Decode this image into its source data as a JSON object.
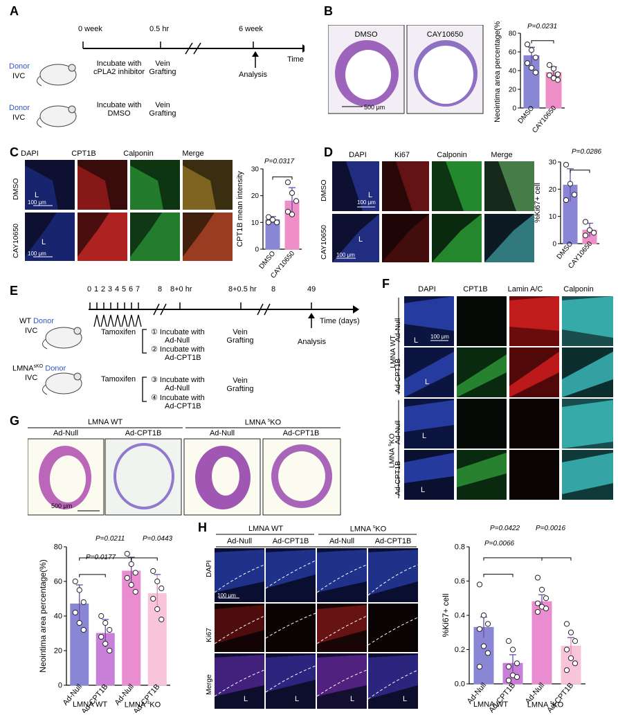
{
  "panels": {
    "A": {
      "label": "A",
      "timeline": {
        "t0": "0 week",
        "t1": "0.5 hr",
        "t2": "6 week",
        "axis": "Time",
        "analysis": "Analysis"
      },
      "row1": {
        "donor": "Donor",
        "ivc": "IVC",
        "step1": "Incubate with",
        "step1b": "cPLA2 inhibitor",
        "step2": "Vein",
        "step2b": "Grafting"
      },
      "row2": {
        "donor": "Donor",
        "ivc": "IVC",
        "step1": "Incubate with",
        "step1b": "DMSO",
        "step2": "Vein",
        "step2b": "Grafting"
      }
    },
    "B": {
      "label": "B",
      "images": [
        "DMSO",
        "CAY10650"
      ],
      "scale": "500 μm",
      "pvalue": "P=0.0231"
    },
    "C": {
      "label": "C",
      "columns": [
        "DAPI",
        "CPT1B",
        "Calponin",
        "Merge"
      ],
      "rows": [
        "DMSO",
        "CAY10650"
      ],
      "lumen": "L",
      "scale": "100 μm",
      "pvalue": "P=0.0317"
    },
    "D": {
      "label": "D",
      "columns": [
        "DAPI",
        "Ki67",
        "Calponin",
        "Merge"
      ],
      "rows": [
        "DMSO",
        "CAY10650"
      ],
      "lumen": "L",
      "scale": "100 μm",
      "pvalue": "P=0.0286"
    },
    "E": {
      "label": "E",
      "ticks": [
        "0",
        "1",
        "2",
        "3",
        "4",
        "5",
        "6",
        "7",
        "8",
        "8+0 hr",
        "8+0.5 hr",
        "8",
        "49"
      ],
      "axis": "Time (days)",
      "tamoxifen": "Tamoxifen",
      "analysis": "Analysis",
      "wt_donor": "WT",
      "donor": "Donor",
      "ivc": "IVC",
      "ko_donor": "LMNA",
      "ko_sup": "sKO",
      "steps": [
        "① Incubate with",
        "Ad-Null",
        "② Incubate with",
        "Ad-CPT1B",
        "③ Incubate with",
        "Ad-Null",
        "④ Incubate with",
        "Ad-CPT1B"
      ],
      "vein": "Vein",
      "grafting": "Grafting"
    },
    "F": {
      "label": "F",
      "columns": [
        "DAPI",
        "CPT1B",
        "Lamin A/C",
        "Calponin"
      ],
      "groups": [
        "LMNA WT",
        "LMNA sKO"
      ],
      "ko_pre": "LMNA ",
      "ko_sup": "s",
      "ko_post": "KO",
      "rows": [
        "Ad-Null",
        "Ad-CPT1B",
        "Ad-Null",
        "Ad-CPT1B"
      ],
      "lumen": "L",
      "scale": "100 μm"
    },
    "G": {
      "label": "G",
      "group_wt": "LMNA WT",
      "group_ko_pre": "LMNA ",
      "group_ko_sup": "s",
      "group_ko_post": "KO",
      "images": [
        "Ad-Null",
        "Ad-CPT1B",
        "Ad-Null",
        "Ad-CPT1B"
      ],
      "scale": "500 μm",
      "p1": "P=0.0211",
      "p2": "P=0.0443",
      "p3": "P=0.0177"
    },
    "H": {
      "label": "H",
      "group_wt": "LMNA WT",
      "group_ko_pre": "LMNA ",
      "group_ko_sup": "s",
      "group_ko_post": "KO",
      "columns": [
        "Ad-Null",
        "Ad-CPT1B",
        "Ad-Null",
        "Ad-CPT1B"
      ],
      "rows": [
        "DAPI",
        "Ki67",
        "Merge"
      ],
      "lumen": "L",
      "scale": "100 μm",
      "p1": "P=0.0422",
      "p2": "P=0.0016",
      "p3": "P=0.0066"
    }
  },
  "chart_data": [
    {
      "id": "B",
      "type": "bar",
      "ylabel": "Neointima area percentage(%)",
      "categories": [
        "DMSO",
        "CAY10650"
      ],
      "values": [
        56,
        38
      ],
      "errors": [
        9,
        6
      ],
      "points": [
        [
          68,
          62,
          54,
          48,
          43,
          38
        ],
        [
          46,
          42,
          36,
          35,
          32,
          30
        ]
      ],
      "ylim": [
        0,
        80
      ],
      "yticks": [
        0,
        20,
        40,
        60,
        80
      ],
      "colors": [
        "#8a86d6",
        "#ef8fc8"
      ]
    },
    {
      "id": "C",
      "type": "bar",
      "ylabel": "CPT1B mean intensity",
      "categories": [
        "DMSO",
        "CAY10650"
      ],
      "values": [
        11,
        18
      ],
      "errors": [
        1.2,
        5
      ],
      "points": [
        [
          12,
          11,
          10,
          10
        ],
        [
          25,
          21,
          18,
          14,
          13
        ]
      ],
      "ylim": [
        0,
        30
      ],
      "yticks": [
        0,
        10,
        20,
        30
      ],
      "colors": [
        "#8a86d6",
        "#ef8fc8"
      ]
    },
    {
      "id": "D",
      "type": "bar",
      "ylabel": "%Ki67+ cell",
      "categories": [
        "DMSO",
        "CAY10650"
      ],
      "values": [
        21.5,
        5
      ],
      "errors": [
        6,
        2.5
      ],
      "points": [
        [
          29,
          22,
          18,
          16
        ],
        [
          8,
          5,
          4,
          3
        ]
      ],
      "ylim": [
        0,
        30
      ],
      "yticks": [
        0,
        10,
        20,
        30
      ],
      "colors": [
        "#8a86d6",
        "#ef8fc8"
      ]
    },
    {
      "id": "G",
      "type": "bar",
      "ylabel": "Neointima area percentage(%)",
      "categories": [
        "Ad-Null",
        "Ad-CPT1B",
        "Ad-Null",
        "Ad-CPT1B"
      ],
      "groups": [
        "LMNA WT",
        "LMNA sKO"
      ],
      "values": [
        47,
        30,
        66,
        53
      ],
      "errors": [
        11,
        8,
        8,
        11
      ],
      "points": [
        [
          60,
          55,
          48,
          42,
          36,
          32
        ],
        [
          40,
          36,
          32,
          28,
          24,
          20
        ],
        [
          76,
          70,
          65,
          62,
          58,
          54
        ],
        [
          66,
          60,
          56,
          50,
          44,
          38
        ]
      ],
      "ylim": [
        0,
        80
      ],
      "yticks": [
        0,
        20,
        40,
        60,
        80
      ],
      "colors": [
        "#8a86d6",
        "#c77fd8",
        "#e98cd0",
        "#f7c4da"
      ]
    },
    {
      "id": "H",
      "type": "bar",
      "ylabel": "%Ki67+ cell",
      "categories": [
        "Ad-Null",
        "Ad-CPT1B",
        "Ad-Null",
        "Ad-CPT1B"
      ],
      "groups": [
        "LMNA WT",
        "LMNA sKO"
      ],
      "values": [
        0.33,
        0.12,
        0.48,
        0.22
      ],
      "errors": [
        0.06,
        0.05,
        0.04,
        0.05
      ],
      "points": [
        [
          0.58,
          0.4,
          0.35,
          0.32,
          0.22,
          0.18,
          0.1
        ],
        [
          0.25,
          0.2,
          0.12,
          0.1,
          0.05,
          0.04,
          0.02
        ],
        [
          0.62,
          0.55,
          0.5,
          0.47,
          0.45,
          0.44,
          0.42
        ],
        [
          0.35,
          0.3,
          0.25,
          0.2,
          0.15,
          0.12,
          0.08
        ]
      ],
      "ylim": [
        0,
        0.8
      ],
      "yticks": [
        0.0,
        0.2,
        0.4,
        0.6,
        0.8
      ],
      "colors": [
        "#8a86d6",
        "#c77fd8",
        "#e98cd0",
        "#f7c4da"
      ]
    }
  ]
}
